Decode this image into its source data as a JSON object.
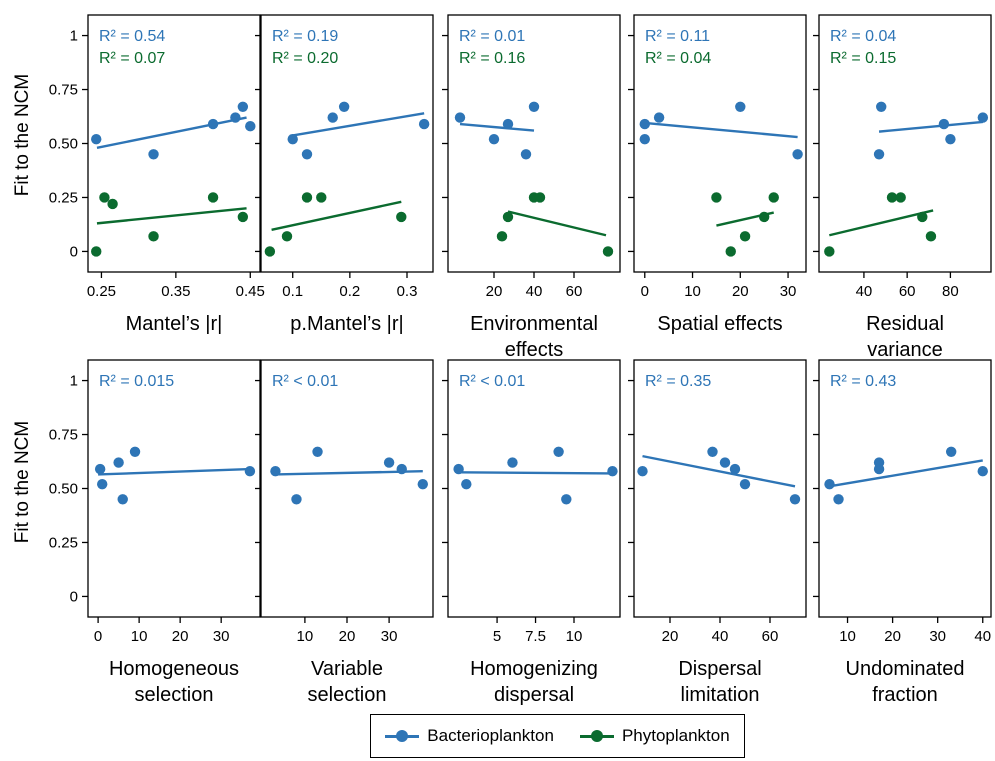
{
  "colors": {
    "bacterio": "#2E75B6",
    "phyto": "#0B6B2F",
    "axis": "#000000"
  },
  "ylabel_top": "Fit to the NCM",
  "ylabel_bottom": "Fit to the NCM",
  "legend": {
    "bacterio": "Bacterioplankton",
    "phyto": "Phytoplankton"
  },
  "chart_data": [
    {
      "type": "scatter",
      "xlabel": [
        "Mantel’s |r|"
      ],
      "xlim": [
        0.24,
        0.455
      ],
      "ylim": [
        0,
        1
      ],
      "xticks": [
        0.25,
        0.35,
        0.45
      ],
      "xticklabels": [
        "0.25",
        "0.35",
        "0.45"
      ],
      "yticks": [
        0,
        0.25,
        0.5,
        0.75,
        1
      ],
      "yticklabels": [
        "0",
        "0.25",
        "0.50",
        "0.75",
        "1"
      ],
      "series": [
        {
          "name": "Bacterioplankton",
          "r2_label": "R² = 0.54",
          "points": [
            [
              0.243,
              0.52
            ],
            [
              0.32,
              0.45
            ],
            [
              0.4,
              0.59
            ],
            [
              0.43,
              0.62
            ],
            [
              0.44,
              0.67
            ],
            [
              0.45,
              0.58
            ]
          ],
          "fit": [
            [
              0.244,
              0.48
            ],
            [
              0.445,
              0.62
            ]
          ]
        },
        {
          "name": "Phytoplankton",
          "r2_label": "R² = 0.07",
          "points": [
            [
              0.243,
              0.0
            ],
            [
              0.254,
              0.25
            ],
            [
              0.265,
              0.22
            ],
            [
              0.32,
              0.07
            ],
            [
              0.4,
              0.25
            ],
            [
              0.44,
              0.16
            ]
          ],
          "fit": [
            [
              0.244,
              0.13
            ],
            [
              0.445,
              0.2
            ]
          ]
        }
      ]
    },
    {
      "type": "scatter",
      "xlabel": [
        "p.Mantel’s |r|"
      ],
      "xlim": [
        0.055,
        0.335
      ],
      "ylim": [
        0,
        1
      ],
      "xticks": [
        0.1,
        0.2,
        0.3
      ],
      "xticklabels": [
        "0.1",
        "0.2",
        "0.3"
      ],
      "yticks": [
        0,
        0.25,
        0.5,
        0.75,
        1
      ],
      "yticklabels": [],
      "series": [
        {
          "name": "Bacterioplankton",
          "r2_label": "R² = 0.19",
          "points": [
            [
              0.1,
              0.52
            ],
            [
              0.125,
              0.45
            ],
            [
              0.17,
              0.62
            ],
            [
              0.19,
              0.67
            ],
            [
              0.33,
              0.59
            ]
          ],
          "fit": [
            [
              0.095,
              0.535
            ],
            [
              0.33,
              0.64
            ]
          ]
        },
        {
          "name": "Phytoplankton",
          "r2_label": "R² = 0.20",
          "points": [
            [
              0.06,
              0.0
            ],
            [
              0.09,
              0.07
            ],
            [
              0.125,
              0.25
            ],
            [
              0.15,
              0.25
            ],
            [
              0.29,
              0.16
            ]
          ],
          "fit": [
            [
              0.063,
              0.1
            ],
            [
              0.29,
              0.23
            ]
          ]
        }
      ]
    },
    {
      "type": "scatter",
      "xlabel": [
        "Environmental",
        "effects"
      ],
      "xlim": [
        0,
        80
      ],
      "ylim": [
        0,
        1
      ],
      "xticks": [
        20,
        40,
        60
      ],
      "xticklabels": [
        "20",
        "40",
        "60"
      ],
      "yticks": [
        0,
        0.25,
        0.5,
        0.75,
        1
      ],
      "yticklabels": [],
      "series": [
        {
          "name": "Bacterioplankton",
          "r2_label": "R² = 0.01",
          "points": [
            [
              3,
              0.62
            ],
            [
              20,
              0.52
            ],
            [
              27,
              0.59
            ],
            [
              36,
              0.45
            ],
            [
              40,
              0.67
            ]
          ],
          "fit": [
            [
              3,
              0.59
            ],
            [
              40,
              0.56
            ]
          ]
        },
        {
          "name": "Phytoplankton",
          "r2_label": "R² = 0.16",
          "points": [
            [
              24,
              0.07
            ],
            [
              27,
              0.16
            ],
            [
              40,
              0.25
            ],
            [
              43,
              0.25
            ],
            [
              77,
              0.0
            ]
          ],
          "fit": [
            [
              27,
              0.185
            ],
            [
              76,
              0.075
            ]
          ]
        }
      ]
    },
    {
      "type": "scatter",
      "xlabel": [
        "Spatial effects"
      ],
      "xlim": [
        -1,
        32.5
      ],
      "ylim": [
        0,
        1
      ],
      "xticks": [
        0,
        10,
        20,
        30
      ],
      "xticklabels": [
        "0",
        "10",
        "20",
        "30"
      ],
      "yticks": [
        0,
        0.25,
        0.5,
        0.75,
        1
      ],
      "yticklabels": [],
      "series": [
        {
          "name": "Bacterioplankton",
          "r2_label": "R² = 0.11",
          "points": [
            [
              0,
              0.59
            ],
            [
              0,
              0.52
            ],
            [
              3,
              0.62
            ],
            [
              20,
              0.67
            ],
            [
              32,
              0.45
            ]
          ],
          "fit": [
            [
              0,
              0.595
            ],
            [
              32,
              0.53
            ]
          ]
        },
        {
          "name": "Phytoplankton",
          "r2_label": "R² = 0.04",
          "points": [
            [
              15,
              0.25
            ],
            [
              18,
              0.0
            ],
            [
              21,
              0.07
            ],
            [
              25,
              0.16
            ],
            [
              27,
              0.25
            ]
          ],
          "fit": [
            [
              15,
              0.12
            ],
            [
              27,
              0.18
            ]
          ]
        }
      ]
    },
    {
      "type": "scatter",
      "xlabel": [
        "Residual",
        "variance"
      ],
      "xlim": [
        22,
        96
      ],
      "ylim": [
        0,
        1
      ],
      "xticks": [
        40,
        60,
        80
      ],
      "xticklabels": [
        "40",
        "60",
        "80"
      ],
      "yticks": [
        0,
        0.25,
        0.5,
        0.75,
        1
      ],
      "yticklabels": [],
      "series": [
        {
          "name": "Bacterioplankton",
          "r2_label": "R² = 0.04",
          "points": [
            [
              47,
              0.45
            ],
            [
              48,
              0.67
            ],
            [
              77,
              0.59
            ],
            [
              80,
              0.52
            ],
            [
              95,
              0.62
            ]
          ],
          "fit": [
            [
              47,
              0.555
            ],
            [
              95,
              0.6
            ]
          ]
        },
        {
          "name": "Phytoplankton",
          "r2_label": "R² = 0.15",
          "points": [
            [
              24,
              0.0
            ],
            [
              53,
              0.25
            ],
            [
              57,
              0.25
            ],
            [
              67,
              0.16
            ],
            [
              71,
              0.07
            ]
          ],
          "fit": [
            [
              24,
              0.075
            ],
            [
              72,
              0.19
            ]
          ]
        }
      ]
    },
    {
      "type": "scatter",
      "xlabel": [
        "Homogeneous",
        "selection"
      ],
      "xlim": [
        -1,
        38
      ],
      "ylim": [
        0,
        1
      ],
      "xticks": [
        0,
        10,
        20,
        30
      ],
      "xticklabels": [
        "0",
        "10",
        "20",
        "30"
      ],
      "yticks": [
        0,
        0.25,
        0.5,
        0.75,
        1
      ],
      "yticklabels": [
        "0",
        "0.25",
        "0.50",
        "0.75",
        "1"
      ],
      "series": [
        {
          "name": "Bacterioplankton",
          "r2_label": "R² = 0.015",
          "points": [
            [
              0.5,
              0.59
            ],
            [
              1,
              0.52
            ],
            [
              5,
              0.62
            ],
            [
              6,
              0.45
            ],
            [
              9,
              0.67
            ],
            [
              37,
              0.58
            ]
          ],
          "fit": [
            [
              0,
              0.565
            ],
            [
              37,
              0.59
            ]
          ]
        }
      ]
    },
    {
      "type": "scatter",
      "xlabel": [
        "Variable",
        "selection"
      ],
      "xlim": [
        1,
        39
      ],
      "ylim": [
        0,
        1
      ],
      "xticks": [
        10,
        20,
        30
      ],
      "xticklabels": [
        "10",
        "20",
        "30"
      ],
      "yticks": [
        0,
        0.25,
        0.5,
        0.75,
        1
      ],
      "yticklabels": [],
      "series": [
        {
          "name": "Bacterioplankton",
          "r2_label": "R² < 0.01",
          "points": [
            [
              3,
              0.58
            ],
            [
              8,
              0.45
            ],
            [
              13,
              0.67
            ],
            [
              30,
              0.62
            ],
            [
              33,
              0.59
            ],
            [
              38,
              0.52
            ]
          ],
          "fit": [
            [
              3,
              0.565
            ],
            [
              38,
              0.58
            ]
          ]
        }
      ]
    },
    {
      "type": "scatter",
      "xlabel": [
        "Homogenizing",
        "dispersal"
      ],
      "xlim": [
        2.2,
        12.6
      ],
      "ylim": [
        0,
        1
      ],
      "xticks": [
        5,
        7.5,
        10
      ],
      "xticklabels": [
        "5",
        "7.5",
        "10"
      ],
      "yticks": [
        0,
        0.25,
        0.5,
        0.75,
        1
      ],
      "yticklabels": [],
      "series": [
        {
          "name": "Bacterioplankton",
          "r2_label": "R² < 0.01",
          "points": [
            [
              2.5,
              0.59
            ],
            [
              3,
              0.52
            ],
            [
              6,
              0.62
            ],
            [
              9,
              0.67
            ],
            [
              9.5,
              0.45
            ],
            [
              12.5,
              0.58
            ]
          ],
          "fit": [
            [
              2.5,
              0.575
            ],
            [
              12.5,
              0.57
            ]
          ]
        }
      ]
    },
    {
      "type": "scatter",
      "xlabel": [
        "Dispersal",
        "limitation"
      ],
      "xlim": [
        8,
        72
      ],
      "ylim": [
        0,
        1
      ],
      "xticks": [
        20,
        40,
        60
      ],
      "xticklabels": [
        "20",
        "40",
        "60"
      ],
      "yticks": [
        0,
        0.25,
        0.5,
        0.75,
        1
      ],
      "yticklabels": [],
      "series": [
        {
          "name": "Bacterioplankton",
          "r2_label": "R² = 0.35",
          "points": [
            [
              9,
              0.58
            ],
            [
              37,
              0.67
            ],
            [
              42,
              0.62
            ],
            [
              46,
              0.59
            ],
            [
              50,
              0.52
            ],
            [
              70,
              0.45
            ]
          ],
          "fit": [
            [
              9,
              0.65
            ],
            [
              70,
              0.51
            ]
          ]
        }
      ]
    },
    {
      "type": "scatter",
      "xlabel": [
        "Undominated",
        "fraction"
      ],
      "xlim": [
        5,
        40.5
      ],
      "ylim": [
        0,
        1
      ],
      "xticks": [
        10,
        20,
        30,
        40
      ],
      "xticklabels": [
        "10",
        "20",
        "30",
        "40"
      ],
      "yticks": [
        0,
        0.25,
        0.5,
        0.75,
        1
      ],
      "yticklabels": [],
      "series": [
        {
          "name": "Bacterioplankton",
          "r2_label": "R² = 0.43",
          "points": [
            [
              6,
              0.52
            ],
            [
              8,
              0.45
            ],
            [
              17,
              0.62
            ],
            [
              17,
              0.59
            ],
            [
              33,
              0.67
            ],
            [
              40,
              0.58
            ]
          ],
          "fit": [
            [
              6,
              0.51
            ],
            [
              40,
              0.63
            ]
          ]
        }
      ]
    }
  ]
}
